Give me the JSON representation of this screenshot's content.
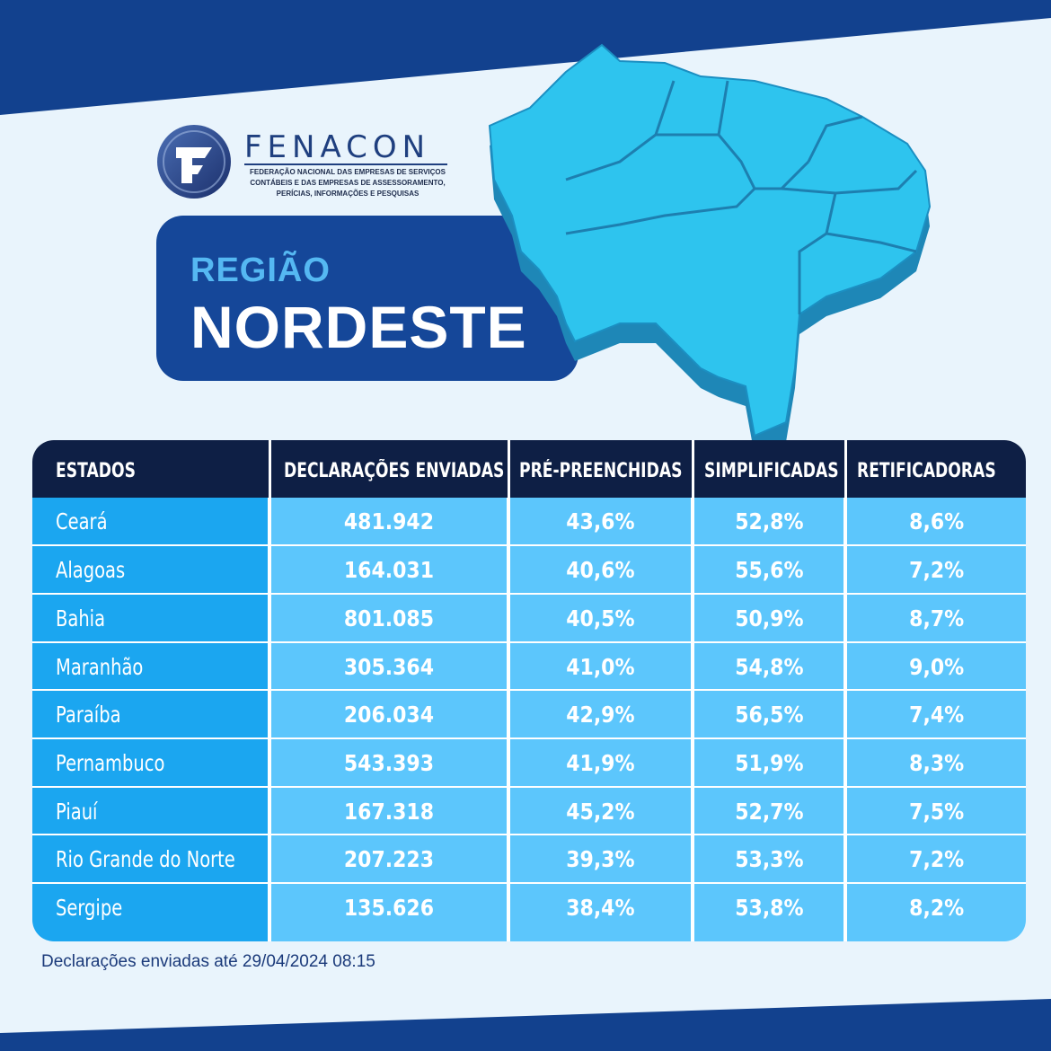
{
  "brand": {
    "name": "FENACON",
    "subtitle_lines": [
      "FEDERAÇÃO NACIONAL DAS EMPRESAS DE SERVIÇOS",
      "CONTÁBEIS E DAS EMPRESAS DE ASSESSORAMENTO,",
      "PERÍCIAS, INFORMAÇÕES E PESQUISAS"
    ]
  },
  "title": {
    "line1": "REGIÃO",
    "line2": "NORDESTE"
  },
  "colors": {
    "header_bg": "#0e1f45",
    "state_column_bg": "#1ba6f0",
    "value_cells_bg": "#5cc6fc",
    "title_box_bg": "#154799",
    "stripe_dark": "#11418c"
  },
  "table": {
    "headers": [
      "ESTADOS",
      "DECLARAÇÕES ENVIADAS",
      "PRÉ-PREENCHIDAS",
      "SIMPLIFICADAS",
      "RETIFICADORAS"
    ],
    "rows": [
      {
        "state": "Ceará",
        "declaracoes": "481.942",
        "pre": "43,6%",
        "simpl": "52,8%",
        "retif": "8,6%"
      },
      {
        "state": "Alagoas",
        "declaracoes": "164.031",
        "pre": "40,6%",
        "simpl": "55,6%",
        "retif": "7,2%"
      },
      {
        "state": "Bahia",
        "declaracoes": "801.085",
        "pre": "40,5%",
        "simpl": "50,9%",
        "retif": "8,7%"
      },
      {
        "state": "Maranhão",
        "declaracoes": "305.364",
        "pre": "41,0%",
        "simpl": "54,8%",
        "retif": "9,0%"
      },
      {
        "state": "Paraíba",
        "declaracoes": "206.034",
        "pre": "42,9%",
        "simpl": "56,5%",
        "retif": "7,4%"
      },
      {
        "state": "Pernambuco",
        "declaracoes": "543.393",
        "pre": "41,9%",
        "simpl": "51,9%",
        "retif": "8,3%"
      },
      {
        "state": "Piauí",
        "declaracoes": "167.318",
        "pre": "45,2%",
        "simpl": "52,7%",
        "retif": "7,5%"
      },
      {
        "state": "Rio Grande do Norte",
        "declaracoes": "207.223",
        "pre": "39,3%",
        "simpl": "53,3%",
        "retif": "7,2%"
      },
      {
        "state": "Sergipe",
        "declaracoes": "135.626",
        "pre": "38,4%",
        "simpl": "53,8%",
        "retif": "8,2%"
      }
    ]
  },
  "footnote": "Declarações enviadas até 29/04/2024 08:15",
  "map_icon": "northeast-brazil-map-icon"
}
